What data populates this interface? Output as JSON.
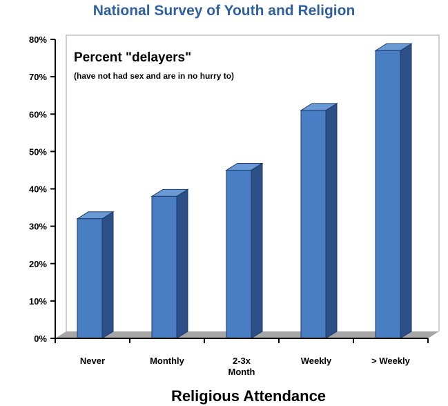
{
  "chart_data": {
    "type": "bar",
    "title": "National Survey of Youth and Religion",
    "annotation": {
      "title": "Percent \"delayers\"",
      "subtitle": "(have not had sex and are in no hurry to)"
    },
    "xlabel": "Religious Attendance",
    "ylabel": "",
    "categories": [
      "Never",
      "Monthly",
      "2-3x Month",
      "Weekly",
      "> Weekly"
    ],
    "values": [
      32,
      38,
      45,
      61,
      77
    ],
    "ylim": [
      0,
      80
    ],
    "yticks": [
      "0%",
      "10%",
      "20%",
      "30%",
      "40%",
      "50%",
      "60%",
      "70%",
      "80%"
    ],
    "grid": false,
    "legend": "none",
    "colors": {
      "bar_front": "#4a7ec4",
      "bar_side": "#2b4f86",
      "bar_top": "#6a9ad6",
      "floor": "#a6a6a6",
      "title": "#2e5f9e"
    }
  }
}
